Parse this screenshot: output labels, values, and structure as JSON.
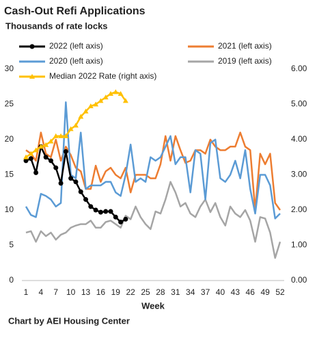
{
  "chart_data": {
    "type": "line",
    "title": "Cash-Out Refi Applications",
    "subtitle": "Thousands of rate locks",
    "x_label": "Week",
    "source": "Chart by AEI Housing Center",
    "x": [
      1,
      2,
      3,
      4,
      5,
      6,
      7,
      8,
      9,
      10,
      11,
      12,
      13,
      14,
      15,
      16,
      17,
      18,
      19,
      20,
      21,
      22,
      23,
      24,
      25,
      26,
      27,
      28,
      29,
      30,
      31,
      32,
      33,
      34,
      35,
      36,
      37,
      38,
      39,
      40,
      41,
      42,
      43,
      44,
      45,
      46,
      47,
      48,
      49,
      50,
      51,
      52
    ],
    "xlim": [
      1,
      52
    ],
    "xticks": [
      1,
      4,
      7,
      10,
      13,
      16,
      19,
      22,
      25,
      28,
      31,
      34,
      37,
      40,
      43,
      46,
      49,
      52
    ],
    "ylim": [
      0,
      30
    ],
    "yticks": [
      0,
      5,
      10,
      15,
      20,
      25,
      30
    ],
    "y2lim": [
      0,
      6
    ],
    "y2ticks": [
      {
        "value": 0,
        "label": "0.00"
      },
      {
        "value": 1,
        "label": "1.00"
      },
      {
        "value": 2,
        "label": "2.00"
      },
      {
        "value": 3,
        "label": "3.00"
      },
      {
        "value": 4,
        "label": "4.00"
      },
      {
        "value": 5,
        "label": "5.00"
      },
      {
        "value": 6,
        "label": "6.00"
      }
    ],
    "grid": false,
    "series": [
      {
        "name": "2022 (left axis)",
        "color": "#000000",
        "marker": "circle",
        "values": [
          17,
          17.3,
          15.3,
          19,
          17.5,
          17,
          16,
          13.8,
          18.3,
          14.5,
          14,
          12.6,
          11.5,
          10.5,
          10,
          9.7,
          9.8,
          9.8,
          9,
          8.3,
          8.7,
          null,
          null,
          null,
          null,
          null,
          null,
          null,
          null,
          null,
          null,
          null,
          null,
          null,
          null,
          null,
          null,
          null,
          null,
          null,
          null,
          null,
          null,
          null,
          null,
          null,
          null,
          null,
          null,
          null,
          null,
          null
        ]
      },
      {
        "name": "2021 (left axis)",
        "color": "#ed7d31",
        "values": [
          18.5,
          18,
          17,
          21,
          18,
          17.5,
          20,
          17,
          19,
          17.8,
          16,
          15.5,
          13,
          13,
          16.3,
          14,
          15.5,
          16,
          15,
          14.5,
          16,
          12.5,
          15,
          15,
          15,
          14.5,
          14.5,
          16.5,
          20.5,
          17,
          20.5,
          18.5,
          16.7,
          17,
          18.5,
          18.5,
          18,
          20,
          19,
          18.5,
          18.5,
          19,
          19,
          21,
          19,
          18.5,
          10,
          18,
          16.5,
          18,
          11,
          10
        ]
      },
      {
        "name": "2020 (left axis)",
        "color": "#5b9bd5",
        "values": [
          10.5,
          9.3,
          9,
          12.3,
          12,
          11.5,
          10.5,
          11,
          25.3,
          15,
          14.5,
          21,
          13,
          13.5,
          13.5,
          13.5,
          14,
          14,
          12.5,
          12,
          15,
          19.3,
          14,
          14.5,
          14,
          17.5,
          17,
          17.5,
          19,
          20.5,
          16.5,
          17.5,
          17.5,
          12.5,
          18.5,
          18,
          11.5,
          19.5,
          20,
          14.5,
          14,
          15,
          17,
          14.5,
          18.5,
          13,
          9.5,
          15,
          15,
          13.5,
          8.8,
          9.5
        ]
      },
      {
        "name": "2019 (left axis)",
        "color": "#a5a5a5",
        "values": [
          6.8,
          7,
          5.5,
          7,
          6.3,
          6.8,
          5.8,
          6.5,
          6.8,
          7.5,
          7.8,
          8,
          8,
          8.5,
          7.5,
          7.5,
          8.3,
          8.5,
          8,
          7.5,
          9.2,
          8.7,
          10.5,
          9,
          8,
          7.3,
          9.8,
          9.5,
          11.5,
          14,
          12.5,
          10.5,
          11,
          9.5,
          9,
          10.5,
          11.5,
          9.7,
          11,
          9,
          7.8,
          10.5,
          9.5,
          9,
          10,
          8.5,
          5.5,
          9,
          8.8,
          6.8,
          3.2,
          5.5
        ]
      },
      {
        "name": "Median 2022 Rate (right axis)",
        "color": "#ffc000",
        "marker": "triangle",
        "axis": "y2",
        "values": [
          3.5,
          3.6,
          3.7,
          3.8,
          3.85,
          3.95,
          4.1,
          4.1,
          4.1,
          4.3,
          4.4,
          4.65,
          4.8,
          4.95,
          5.0,
          5.1,
          5.2,
          5.3,
          5.35,
          5.3,
          5.1,
          null,
          null,
          null,
          null,
          null,
          null,
          null,
          null,
          null,
          null,
          null,
          null,
          null,
          null,
          null,
          null,
          null,
          null,
          null,
          null,
          null,
          null,
          null,
          null,
          null,
          null,
          null,
          null,
          null,
          null,
          null
        ]
      }
    ]
  }
}
